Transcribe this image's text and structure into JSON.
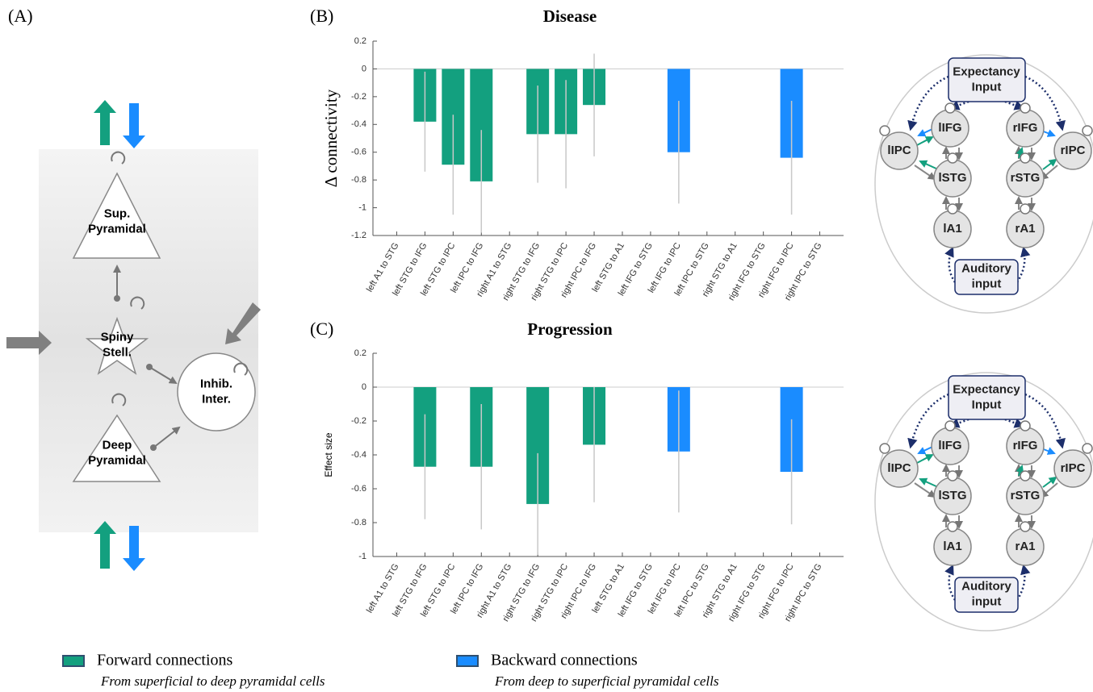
{
  "panels": {
    "a": "(A)",
    "b": "(B)",
    "c": "(C)"
  },
  "cortical_column": {
    "cells": [
      {
        "label": [
          "Sup.",
          "Pyramidal"
        ]
      },
      {
        "label": [
          "Spiny",
          "Stell."
        ]
      },
      {
        "label": [
          "Inhib.",
          "Inter."
        ]
      },
      {
        "label": [
          "Deep",
          "Pyramidal"
        ]
      }
    ]
  },
  "network": {
    "nodes": [
      {
        "label": [
          "Expectancy",
          "Input"
        ]
      },
      {
        "label": [
          "lIFG"
        ]
      },
      {
        "label": [
          "rIFG"
        ]
      },
      {
        "label": [
          "lIPC"
        ]
      },
      {
        "label": [
          "rIPC"
        ]
      },
      {
        "label": [
          "lSTG"
        ]
      },
      {
        "label": [
          "rSTG"
        ]
      },
      {
        "label": [
          "lA1"
        ]
      },
      {
        "label": [
          "rA1"
        ]
      },
      {
        "label": [
          "Auditory",
          "input"
        ]
      }
    ]
  },
  "chart_data": [
    {
      "type": "bar",
      "title": "Disease",
      "y_label": "Δ connectivity",
      "categories": [
        "left A1 to STG",
        "left STG to IFG",
        "left STG to IPC",
        "left IPC to IFG",
        "right A1 to STG",
        "right STG to IFG",
        "right STG to IPC",
        "right IPC to IFG",
        "left STG to A1",
        "left IFG to STG",
        "left IFG to IPC",
        "left IPC to STG",
        "right STG to A1",
        "right IFG to STG",
        "right IFG to IPC",
        "right IPC to STG"
      ],
      "series": [
        {
          "name": "Forward connections",
          "color": "#13a07f",
          "values": [
            0,
            -0.38,
            -0.69,
            -0.81,
            0,
            -0.47,
            -0.47,
            -0.26,
            null,
            null,
            null,
            null,
            null,
            null,
            null,
            null
          ],
          "errors": [
            0,
            0.36,
            0.36,
            0.37,
            0,
            0.35,
            0.39,
            0.37,
            null,
            null,
            null,
            null,
            null,
            null,
            null,
            null
          ]
        },
        {
          "name": "Backward connections",
          "color": "#1a8cff",
          "values": [
            null,
            null,
            null,
            null,
            null,
            null,
            null,
            null,
            0,
            0,
            -0.6,
            0,
            0,
            0,
            -0.64,
            0
          ],
          "errors": [
            null,
            null,
            null,
            null,
            null,
            null,
            null,
            null,
            0,
            0,
            0.37,
            0,
            0,
            0,
            0.41,
            0
          ]
        }
      ],
      "ylim": [
        -1.2,
        0.2
      ],
      "yticks": [
        0.2,
        0,
        -0.2,
        -0.4,
        -0.6,
        -0.8,
        -1,
        -1.2
      ]
    },
    {
      "type": "bar",
      "title": "Progression",
      "y_label": "Effect size",
      "categories": [
        "left A1 to STG",
        "left STG to IFG",
        "left STG to IPC",
        "left IPC to IFG",
        "right A1 to STG",
        "right STG to IFG",
        "right STG to IPC",
        "right IPC to IFG",
        "left STG to A1",
        "left IFG to STG",
        "left IFG to IPC",
        "left IPC to STG",
        "right STG to A1",
        "right IFG to STG",
        "right IFG to IPC",
        "right IPC to STG"
      ],
      "series": [
        {
          "name": "Forward connections",
          "color": "#13a07f",
          "values": [
            0,
            -0.47,
            0,
            -0.47,
            0,
            -0.69,
            0,
            -0.34,
            null,
            null,
            null,
            null,
            null,
            null,
            null,
            null
          ],
          "errors": [
            0,
            0.31,
            0,
            0.37,
            0,
            0.3,
            0,
            0.34,
            null,
            null,
            null,
            null,
            null,
            null,
            null,
            null
          ]
        },
        {
          "name": "Backward connections",
          "color": "#1a8cff",
          "values": [
            null,
            null,
            null,
            null,
            null,
            null,
            null,
            null,
            0,
            0,
            -0.38,
            0,
            0,
            0,
            -0.5,
            0
          ],
          "errors": [
            null,
            null,
            null,
            null,
            null,
            null,
            null,
            null,
            0,
            0,
            0.36,
            0,
            0,
            0,
            0.31,
            0
          ]
        }
      ],
      "ylim": [
        -1,
        0.2
      ],
      "yticks": [
        0.2,
        0,
        -0.2,
        -0.4,
        -0.6,
        -0.8,
        -1
      ]
    }
  ],
  "legend_notes": [
    "From superficial to deep pyramidal cells",
    "From deep to superficial pyramidal cells"
  ]
}
